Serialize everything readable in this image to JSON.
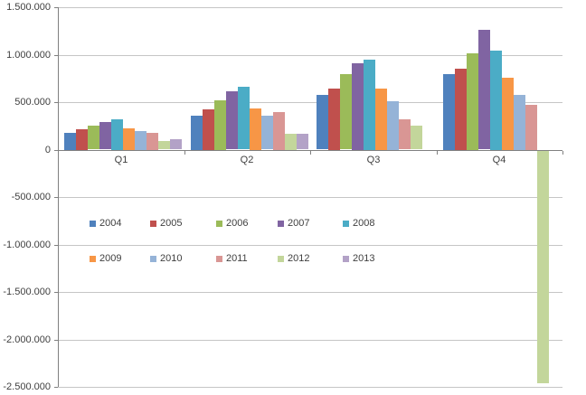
{
  "chart_data": {
    "type": "bar",
    "title": "",
    "xlabel": "",
    "ylabel": "",
    "categories": [
      "Q1",
      "Q2",
      "Q3",
      "Q4"
    ],
    "series": [
      {
        "name": "2004",
        "color": "#4F81BD",
        "values": [
          180000,
          360000,
          575000,
          800000
        ]
      },
      {
        "name": "2005",
        "color": "#C0504D",
        "values": [
          215000,
          425000,
          645000,
          855000
        ]
      },
      {
        "name": "2006",
        "color": "#9BBB59",
        "values": [
          250000,
          520000,
          795000,
          1015000
        ]
      },
      {
        "name": "2007",
        "color": "#8064A2",
        "values": [
          290000,
          610000,
          910000,
          1260000
        ]
      },
      {
        "name": "2008",
        "color": "#4BACC6",
        "values": [
          320000,
          660000,
          950000,
          1045000
        ]
      },
      {
        "name": "2009",
        "color": "#F79646",
        "values": [
          225000,
          435000,
          645000,
          760000
        ]
      },
      {
        "name": "2010",
        "color": "#95B3D7",
        "values": [
          200000,
          355000,
          510000,
          580000
        ]
      },
      {
        "name": "2011",
        "color": "#D99694",
        "values": [
          180000,
          400000,
          315000,
          475000
        ]
      },
      {
        "name": "2012",
        "color": "#C3D69B",
        "values": [
          90000,
          170000,
          250000,
          -2450000
        ]
      },
      {
        "name": "2013",
        "color": "#B3A2C7",
        "values": [
          105000,
          165000,
          0,
          0
        ]
      }
    ],
    "y_axis": {
      "min": -2500000,
      "max": 1500000,
      "step": 500000,
      "tick_labels": [
        "1.500.000",
        "1.000.000",
        "500.000",
        "0",
        "-500.000",
        "-1.000.000",
        "-1.500.000",
        "-2.000.000",
        "-2.500.000"
      ]
    },
    "legend": {
      "position": "inside-upper-left-of-negative-area",
      "rows": [
        [
          "2004",
          "2005",
          "2006",
          "2007",
          "2008"
        ],
        [
          "2009",
          "2010",
          "2011",
          "2012",
          "2013"
        ]
      ]
    },
    "grid": true,
    "colors": {
      "background": "#ffffff",
      "gridline": "#c6c6c6",
      "axis": "#808080",
      "text": "#404040"
    }
  }
}
